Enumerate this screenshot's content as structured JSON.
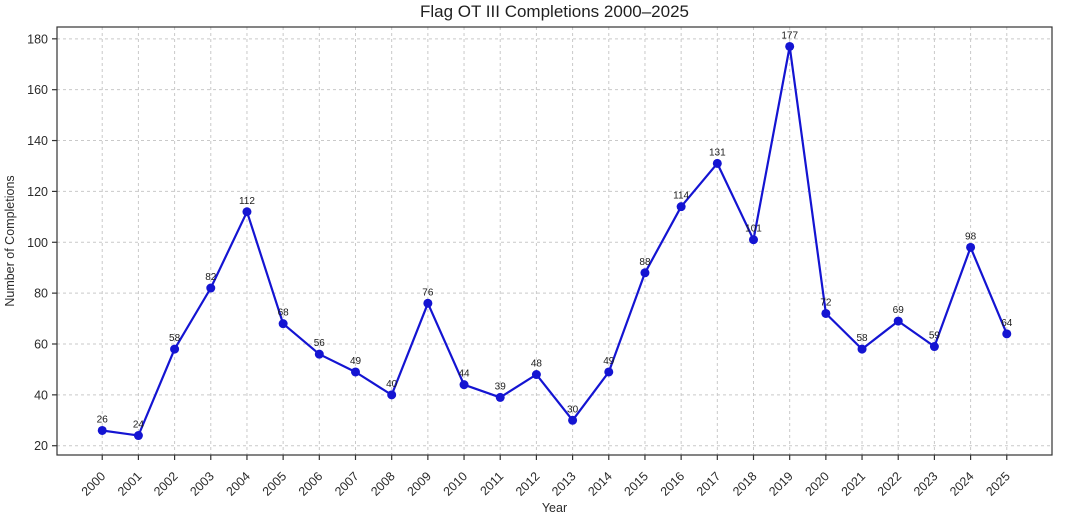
{
  "chart_data": {
    "type": "line",
    "title": "Flag OT III Completions 2000–2025",
    "xlabel": "Year",
    "ylabel": "Number of Completions",
    "x": [
      2000,
      2001,
      2002,
      2003,
      2004,
      2005,
      2006,
      2007,
      2008,
      2009,
      2010,
      2011,
      2012,
      2013,
      2014,
      2015,
      2016,
      2017,
      2018,
      2019,
      2020,
      2021,
      2022,
      2023,
      2024,
      2025
    ],
    "values": [
      26,
      24,
      58,
      82,
      112,
      68,
      56,
      49,
      40,
      76,
      44,
      39,
      48,
      30,
      49,
      88,
      114,
      131,
      101,
      177,
      72,
      58,
      69,
      59,
      98,
      64
    ],
    "point_labels": [
      "26",
      "24",
      "58",
      "82",
      "112",
      "68",
      "56",
      "49",
      "40",
      "76",
      "44",
      "39",
      "48",
      "30",
      "49",
      "88",
      "114",
      "131",
      "101",
      "177",
      "72",
      "58",
      "69",
      "59",
      "98",
      "64"
    ],
    "yticks": [
      20,
      40,
      60,
      80,
      100,
      120,
      140,
      160,
      180
    ],
    "xtick_labels": [
      "2000",
      "2001",
      "2002",
      "2003",
      "2004",
      "2005",
      "2006",
      "2007",
      "2008",
      "2009",
      "2010",
      "2011",
      "2012",
      "2013",
      "2014",
      "2015",
      "2016",
      "2017",
      "2018",
      "2019",
      "2020",
      "2021",
      "2022",
      "2023",
      "2024",
      "2025"
    ],
    "xlim": [
      1998.75,
      2026.25
    ],
    "ylim": [
      16.35,
      184.65
    ],
    "grid": true,
    "grid_style": "dashed",
    "grid_color": "#c9c9c9",
    "line_color": "#1414d2",
    "marker": "circle",
    "marker_color": "#1414d2",
    "spine_color": "#333333",
    "legend": "none"
  }
}
